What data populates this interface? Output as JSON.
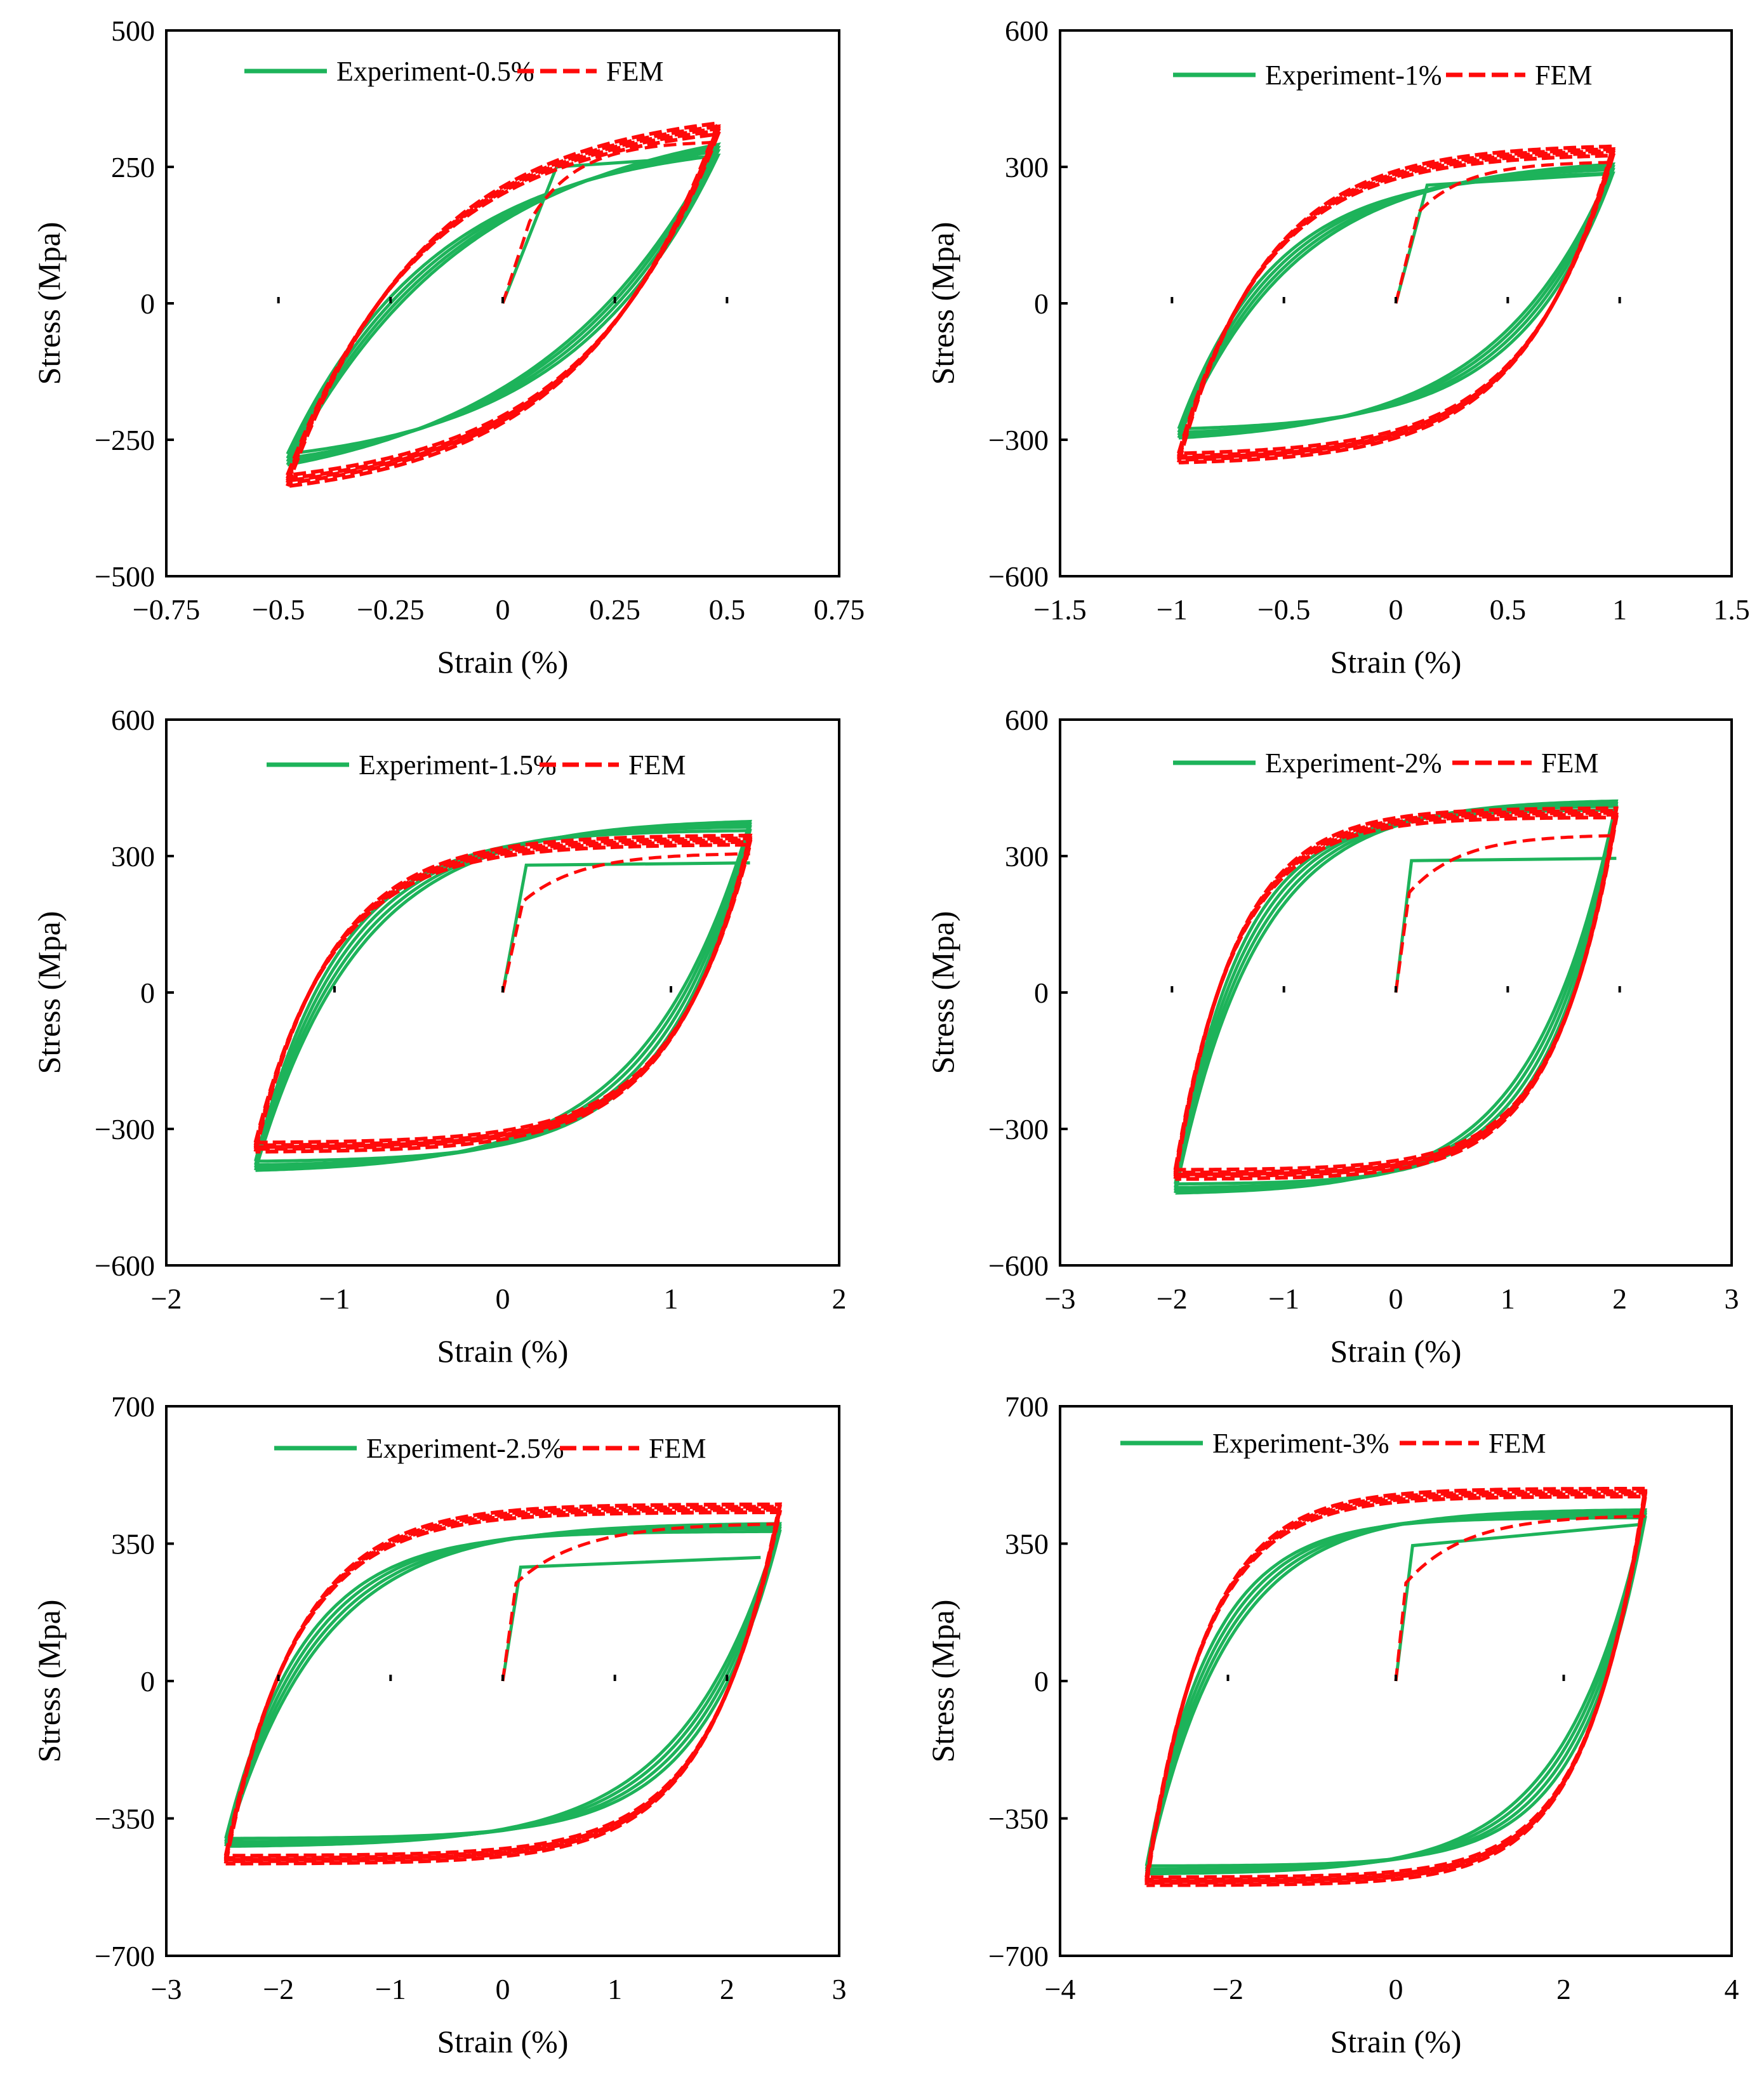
{
  "figure": {
    "description_hidden": false,
    "colors": {
      "experiment": "#1db35a",
      "fem": "#ff0a0a",
      "axis": "#000000"
    }
  },
  "chart_data": [
    {
      "type": "line",
      "panel": "a",
      "legend": {
        "experiment": "Experiment-0.5%",
        "fem": "FEM"
      },
      "xlabel": "Strain (%)",
      "ylabel": "Stress (Mpa)",
      "xlim": [
        -0.75,
        0.75
      ],
      "ylim": [
        -500,
        500
      ],
      "xticks": [
        -0.75,
        -0.5,
        -0.25,
        0,
        0.25,
        0.5,
        0.75
      ],
      "xtick_labels": [
        "−0.75",
        "−0.5",
        "−0.25",
        "0",
        "0.25",
        "0.5",
        "0.75"
      ],
      "yticks": [
        -500,
        -250,
        0,
        250,
        500
      ],
      "ytick_labels": [
        "−500",
        "−250",
        "0",
        "250",
        "500"
      ],
      "amplitude": 0.48,
      "exp_peak": [
        285,
        -290
      ],
      "exp_init": {
        "elastic_end": [
          0.12,
          250
        ],
        "plateau_end": [
          0.48,
          270
        ]
      },
      "fem_peak": [
        320,
        -325
      ],
      "fem_init": {
        "elastic_end": [
          0.06,
          150
        ],
        "plateau_end": [
          0.48,
          295
        ]
      },
      "shape": 0.35
    },
    {
      "type": "line",
      "panel": "b",
      "legend": {
        "experiment": "Experiment-1%",
        "fem": "FEM"
      },
      "xlabel": "Strain (%)",
      "ylabel": "Stress (Mpa)",
      "xlim": [
        -1.5,
        1.5
      ],
      "ylim": [
        -600,
        600
      ],
      "xticks": [
        -1.5,
        -1,
        -0.5,
        0,
        0.5,
        1,
        1.5
      ],
      "xtick_labels": [
        "−1.5",
        "−1",
        "−0.5",
        "0",
        "0.5",
        "1",
        "1.5"
      ],
      "yticks": [
        -600,
        -300,
        0,
        300,
        600
      ],
      "ytick_labels": [
        "−600",
        "−300",
        "0",
        "300",
        "600"
      ],
      "amplitude": 0.97,
      "exp_peak": [
        300,
        -290
      ],
      "exp_init": {
        "elastic_end": [
          0.14,
          260
        ],
        "plateau_end": [
          0.97,
          285
        ]
      },
      "fem_peak": [
        335,
        -340
      ],
      "fem_init": {
        "elastic_end": [
          0.1,
          200
        ],
        "plateau_end": [
          0.97,
          310
        ]
      },
      "shape": 0.22
    },
    {
      "type": "line",
      "panel": "c",
      "legend": {
        "experiment": "Experiment-1.5%",
        "fem": "FEM"
      },
      "xlabel": "Strain (%)",
      "ylabel": "Stress (Mpa)",
      "xlim": [
        -2,
        2
      ],
      "ylim": [
        -600,
        600
      ],
      "xticks": [
        -2,
        -1,
        0,
        1,
        2
      ],
      "xtick_labels": [
        "−2",
        "−1",
        "0",
        "1",
        "2"
      ],
      "yticks": [
        -600,
        -300,
        0,
        300,
        600
      ],
      "ytick_labels": [
        "−600",
        "−300",
        "0",
        "300",
        "600"
      ],
      "amplitude": 1.47,
      "exp_peak": [
        370,
        -385
      ],
      "exp_init": {
        "elastic_end": [
          0.14,
          280
        ],
        "plateau_end": [
          1.47,
          285
        ]
      },
      "fem_peak": [
        335,
        -340
      ],
      "fem_init": {
        "elastic_end": [
          0.12,
          200
        ],
        "plateau_end": [
          1.47,
          305
        ]
      },
      "shape": 0.17
    },
    {
      "type": "line",
      "panel": "d",
      "legend": {
        "experiment": "Experiment-2%",
        "fem": "FEM"
      },
      "xlabel": "Strain (%)",
      "ylabel": "Stress (Mpa)",
      "xlim": [
        -3,
        3
      ],
      "ylim": [
        -600,
        600
      ],
      "xticks": [
        -3,
        -2,
        -1,
        0,
        1,
        2,
        3
      ],
      "xtick_labels": [
        "−3",
        "−2",
        "−1",
        "0",
        "1",
        "2",
        "3"
      ],
      "yticks": [
        -600,
        -300,
        0,
        300,
        600
      ],
      "ytick_labels": [
        "−600",
        "−300",
        "0",
        "300",
        "600"
      ],
      "amplitude": 1.97,
      "exp_peak": [
        415,
        -435
      ],
      "exp_init": {
        "elastic_end": [
          0.14,
          290
        ],
        "plateau_end": [
          1.97,
          295
        ]
      },
      "fem_peak": [
        395,
        -400
      ],
      "fem_init": {
        "elastic_end": [
          0.12,
          220
        ],
        "plateau_end": [
          1.97,
          345
        ]
      },
      "shape": 0.15
    },
    {
      "type": "line",
      "panel": "e",
      "legend": {
        "experiment": "Experiment-2.5%",
        "fem": "FEM"
      },
      "xlabel": "Strain (%)",
      "ylabel": "Stress (Mpa)",
      "xlim": [
        -3,
        3
      ],
      "ylim": [
        -700,
        700
      ],
      "xticks": [
        -3,
        -2,
        -1,
        0,
        1,
        2,
        3
      ],
      "xtick_labels": [
        "−3",
        "−2",
        "−1",
        "0",
        "1",
        "2",
        "3"
      ],
      "yticks": [
        -700,
        -350,
        0,
        350,
        700
      ],
      "ytick_labels": [
        "−700",
        "−350",
        "0",
        "350",
        "700"
      ],
      "amplitude": 2.47,
      "exp_peak": [
        395,
        -415
      ],
      "exp_init": {
        "elastic_end": [
          0.16,
          290
        ],
        "plateau_end": [
          2.3,
          315
        ]
      },
      "fem_peak": [
        440,
        -455
      ],
      "fem_init": {
        "elastic_end": [
          0.12,
          250
        ],
        "plateau_end": [
          2.47,
          400
        ]
      },
      "shape": 0.14
    },
    {
      "type": "line",
      "panel": "f",
      "legend": {
        "experiment": "Experiment-3%",
        "fem": "FEM"
      },
      "xlabel": "Strain (%)",
      "ylabel": "Stress (Mpa)",
      "xlim": [
        -4,
        4
      ],
      "ylim": [
        -700,
        700
      ],
      "xticks": [
        -4,
        -2,
        0,
        2,
        4
      ],
      "xtick_labels": [
        "−4",
        "−2",
        "0",
        "2",
        "4"
      ],
      "yticks": [
        -700,
        -350,
        0,
        350,
        700
      ],
      "ytick_labels": [
        "−700",
        "−350",
        "0",
        "350",
        "700"
      ],
      "amplitude": 2.97,
      "exp_peak": [
        430,
        -485
      ],
      "exp_init": {
        "elastic_end": [
          0.2,
          345
        ],
        "plateau_end": [
          2.97,
          400
        ]
      },
      "fem_peak": [
        480,
        -510
      ],
      "fem_init": {
        "elastic_end": [
          0.12,
          250
        ],
        "plateau_end": [
          2.97,
          420
        ]
      },
      "shape": 0.13
    }
  ]
}
